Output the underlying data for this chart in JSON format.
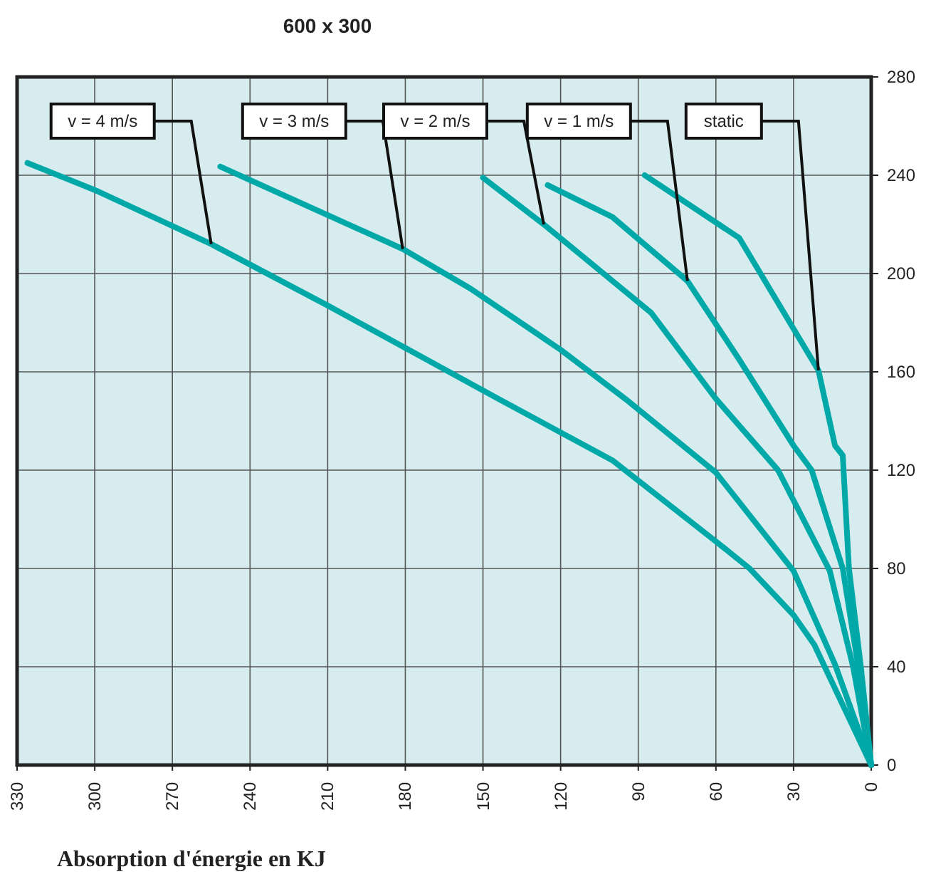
{
  "chart_data": {
    "type": "line",
    "title": "600 x 300",
    "xlabel": "Absorption d'énergie en KJ",
    "xlim": [
      330,
      0
    ],
    "xticks": [
      330,
      300,
      270,
      240,
      210,
      180,
      150,
      120,
      90,
      60,
      30,
      0
    ],
    "ylim": [
      0,
      280
    ],
    "yticks": [
      0,
      40,
      80,
      120,
      160,
      200,
      240,
      280
    ],
    "grid": true,
    "line_style": "solid",
    "marker": "none",
    "series": [
      {
        "color": "#00a8a8",
        "x": [
          326,
          300,
          255,
          210,
          144,
          100,
          60,
          47,
          30,
          22,
          0
        ],
        "values": [
          245,
          234,
          212,
          187,
          149,
          124,
          91,
          80,
          61,
          49,
          0
        ]
      },
      {
        "color": "#00a8a8",
        "x": [
          251.5,
          181,
          155,
          120,
          95,
          60,
          30,
          14,
          0
        ],
        "values": [
          243.5,
          210,
          194,
          169,
          149,
          119,
          79,
          41,
          0
        ]
      },
      {
        "color": "#00a8a8",
        "x": [
          150,
          126.5,
          85,
          60,
          36,
          16,
          7,
          0
        ],
        "values": [
          239,
          220,
          184,
          149,
          120,
          79,
          40,
          0
        ]
      },
      {
        "color": "#00a8a8",
        "x": [
          125,
          100,
          71,
          51,
          30,
          23,
          11,
          5,
          0
        ],
        "values": [
          236,
          223,
          197,
          165,
          130,
          120,
          80,
          40,
          0
        ]
      },
      {
        "color": "#00a8a8",
        "x": [
          87.5,
          51,
          20.4,
          14,
          11,
          8.6,
          4,
          0
        ],
        "values": [
          240,
          214.5,
          160.6,
          130,
          126,
          80,
          40,
          0
        ]
      }
    ],
    "annotations": [
      {
        "text": "v = 4 m/s",
        "x": 255,
        "y": 212
      },
      {
        "text": "v = 3 m/s",
        "x": 181,
        "y": 210
      },
      {
        "text": "v = 2 m/s",
        "x": 126.5,
        "y": 220
      },
      {
        "text": "v = 1 m/s",
        "x": 71,
        "y": 197
      },
      {
        "text": "static",
        "x": 20.4,
        "y": 160.6
      }
    ]
  }
}
